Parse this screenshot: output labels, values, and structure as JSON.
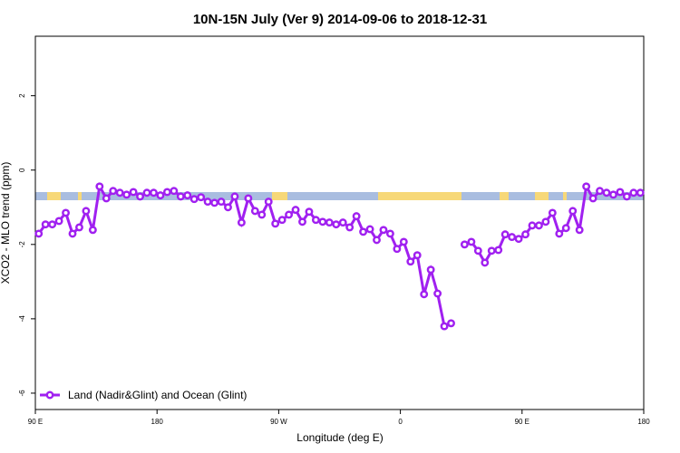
{
  "chart_data": {
    "type": "line",
    "title": "10N-15N July (Ver 9)   2014-09-06 to 2018-12-31",
    "x_label": "Longitude (deg E)",
    "y_label": "XCO2 - MLO trend (ppm)",
    "xlim": [
      90,
      540
    ],
    "ylim": [
      -6.44,
      3.6
    ],
    "xticks": [
      {
        "value": 90,
        "label": "90 E"
      },
      180,
      {
        "value": 270,
        "label": "90 W"
      },
      {
        "value": 360,
        "label": "0"
      },
      {
        "value": 450,
        "label": "90 E"
      },
      {
        "value": 540,
        "label": "180"
      }
    ],
    "yticks": [
      -6,
      -4,
      -2,
      0,
      2
    ],
    "x": [
      92.5,
      97.5,
      102.5,
      107.5,
      112.5,
      117.5,
      122.5,
      127.5,
      132.5,
      137.5,
      142.5,
      147.5,
      152.5,
      157.5,
      162.5,
      167.5,
      172.5,
      177.5,
      182.5,
      187.5,
      192.5,
      197.5,
      202.5,
      207.5,
      212.5,
      217.5,
      222.5,
      227.5,
      232.5,
      237.5,
      242.5,
      247.5,
      252.5,
      257.5,
      262.5,
      267.5,
      272.5,
      277.5,
      282.5,
      287.5,
      292.5,
      297.5,
      302.5,
      307.5,
      312.5,
      317.5,
      322.5,
      327.5,
      332.5,
      337.5,
      342.5,
      347.5,
      352.5,
      357.5,
      362.5,
      367.5,
      372.5,
      377.5,
      382.5,
      387.5,
      392.5,
      397.5,
      402.5,
      407.5,
      412.5,
      417.5,
      422.5,
      427.5,
      432.5,
      437.5,
      442.5,
      447.5,
      452.5,
      457.5,
      462.5,
      467.5,
      472.5,
      477.5,
      482.5,
      487.5,
      492.5,
      497.5,
      502.5,
      507.5,
      512.5,
      517.5,
      522.5,
      527.5,
      532.5,
      537.5
    ],
    "series": [
      {
        "name": "Land (Nadir&Glint) and Ocean (Glint)",
        "color": "#a020f0",
        "values": [
          -1.71,
          -1.46,
          -1.46,
          -1.37,
          -1.15,
          -1.71,
          -1.54,
          -1.1,
          -1.61,
          -0.44,
          -0.76,
          -0.56,
          -0.61,
          -0.66,
          -0.59,
          -0.71,
          -0.61,
          -0.61,
          -0.68,
          -0.59,
          -0.56,
          -0.71,
          -0.68,
          -0.78,
          -0.73,
          -0.85,
          -0.88,
          -0.85,
          -1.0,
          -0.71,
          -1.41,
          -0.76,
          -1.1,
          -1.2,
          -0.85,
          -1.44,
          -1.34,
          -1.2,
          -1.07,
          -1.39,
          -1.12,
          -1.34,
          -1.39,
          -1.41,
          -1.46,
          -1.41,
          -1.54,
          -1.24,
          -1.66,
          -1.59,
          -1.88,
          -1.61,
          -1.71,
          -2.12,
          -1.93,
          -2.46,
          -2.29,
          -3.34,
          -2.68,
          -3.32,
          -4.2,
          -4.12,
          null,
          -2.0,
          -1.93,
          -2.17,
          -2.49,
          -2.17,
          -2.15,
          -1.73,
          -1.8,
          -1.85,
          -1.73,
          -1.49,
          -1.49,
          -1.39,
          -1.15,
          -1.71,
          -1.56,
          -1.1,
          -1.61,
          -0.44,
          -0.76,
          -0.56,
          -0.61,
          -0.66,
          -0.59,
          -0.71,
          -0.61,
          -0.61
        ]
      }
    ],
    "legend": "bottom-left"
  }
}
